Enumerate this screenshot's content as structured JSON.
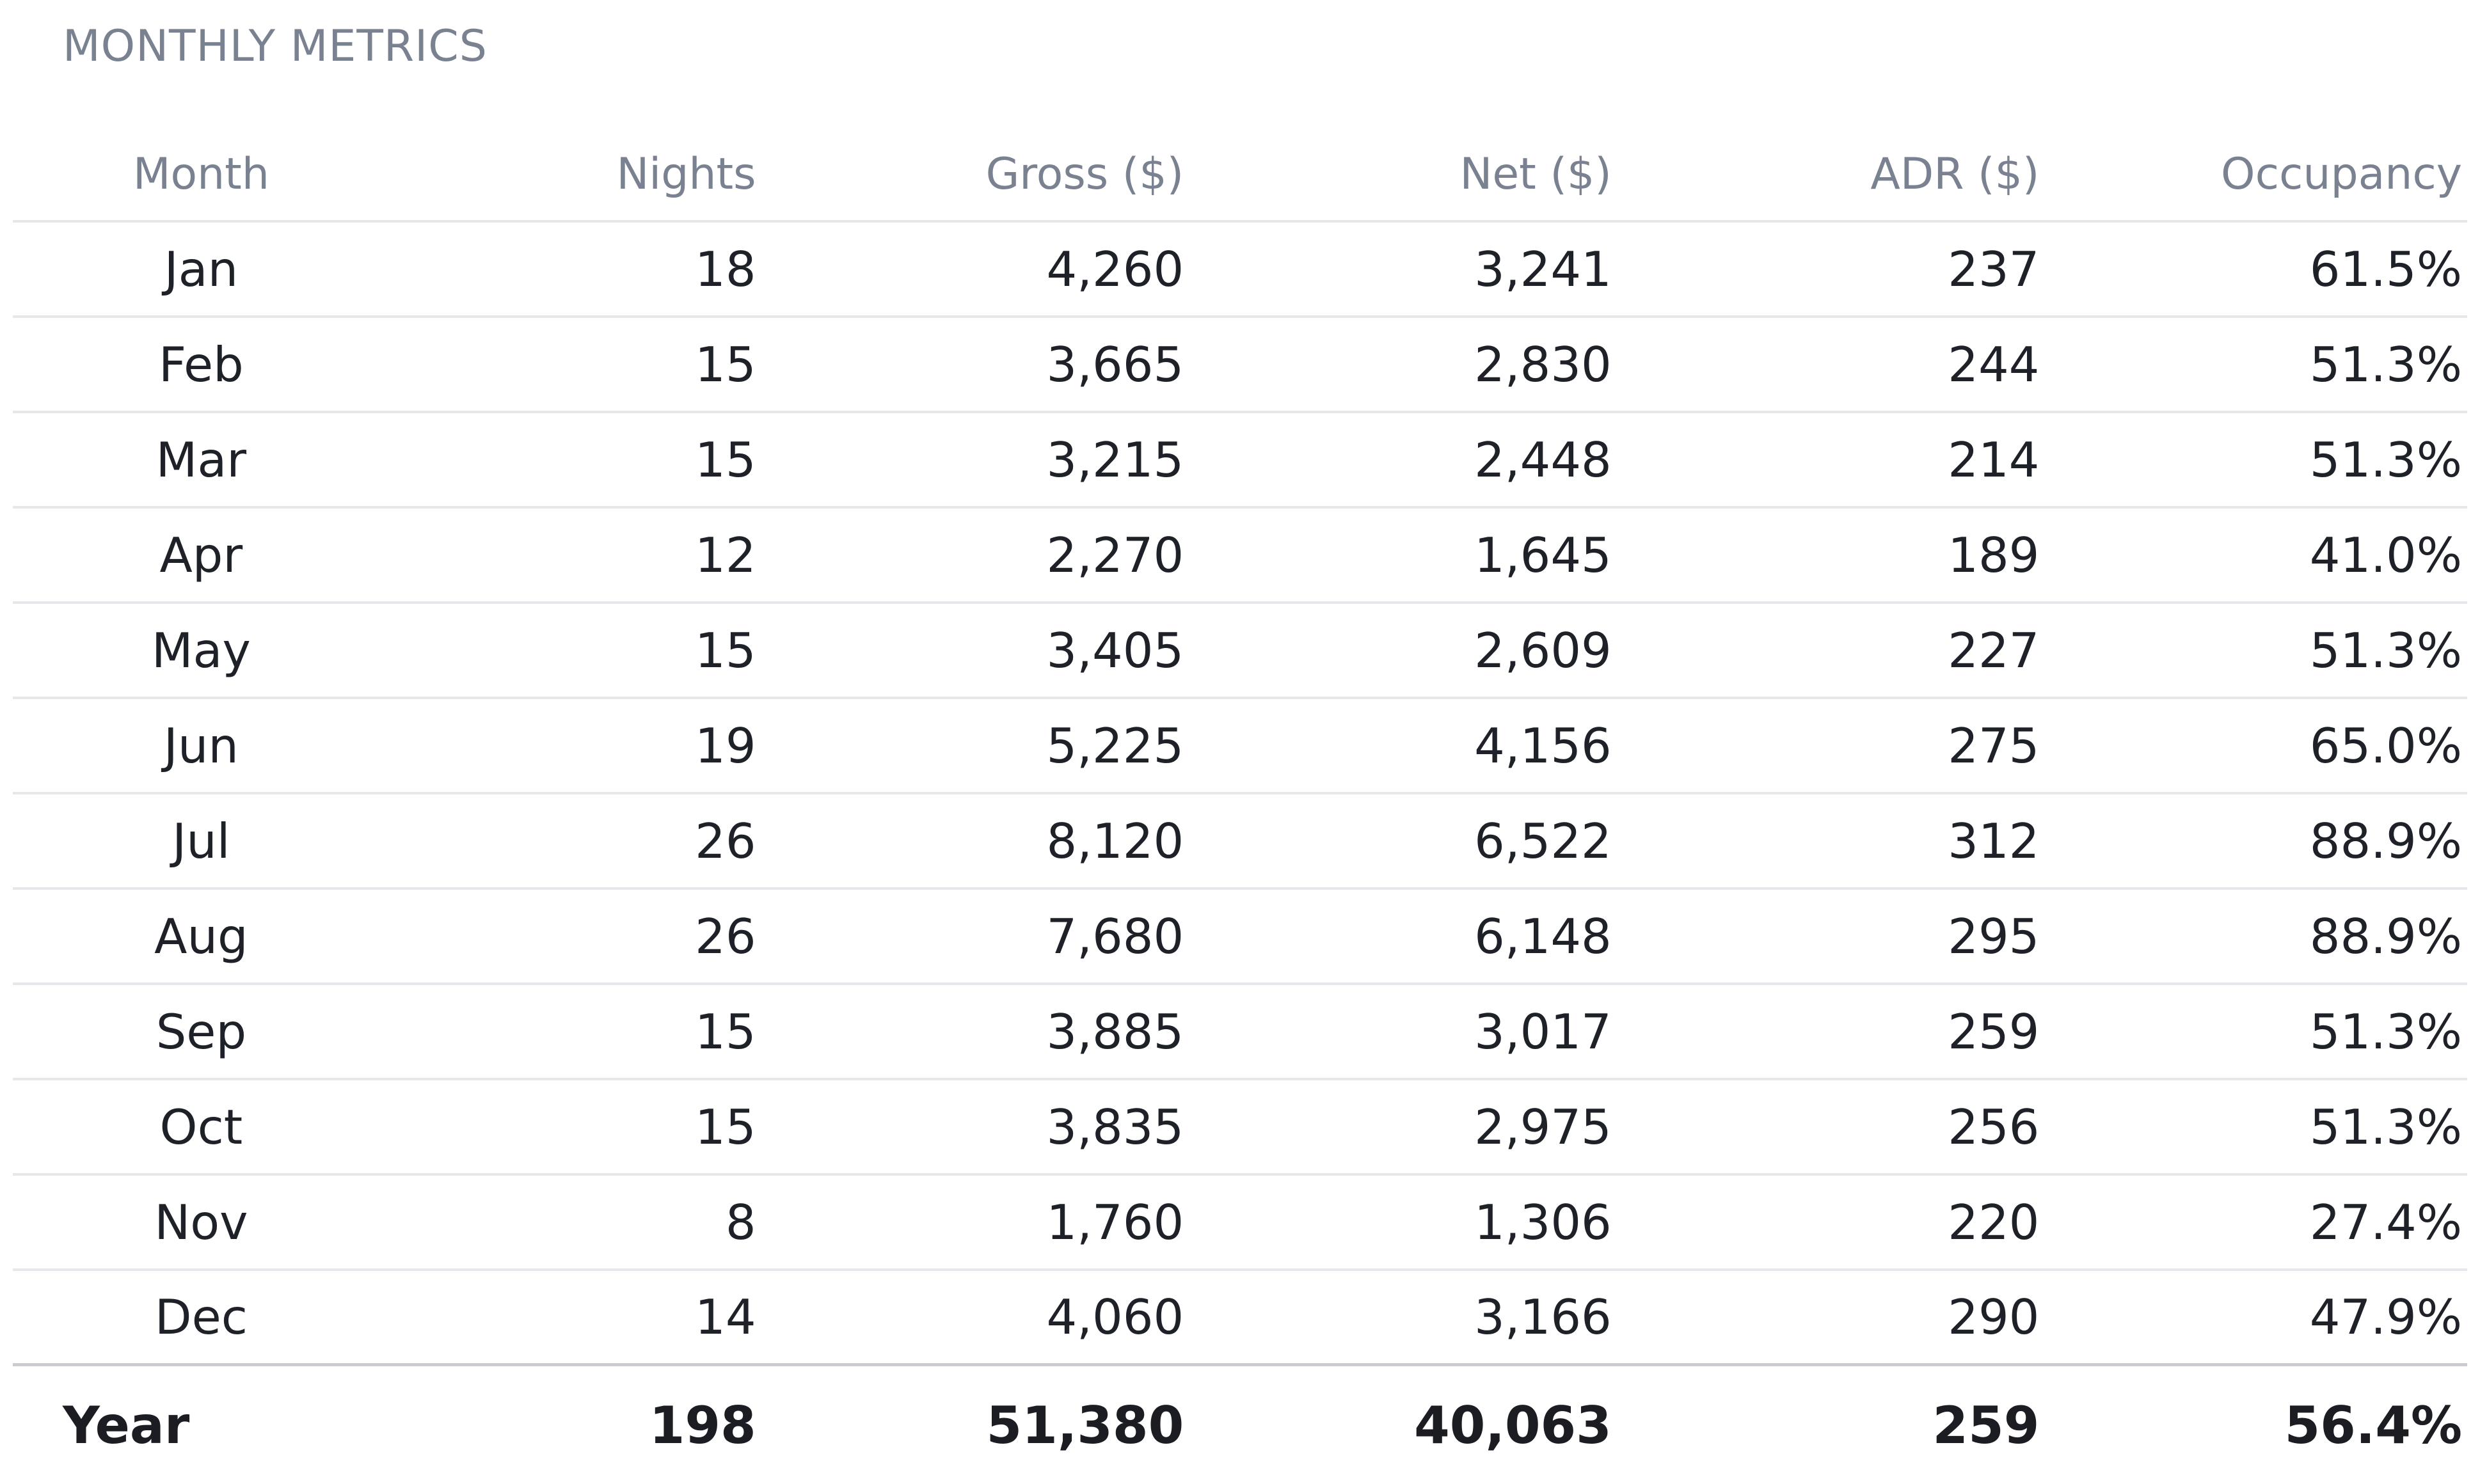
{
  "title": "MONTHLY METRICS",
  "columns": [
    "Month",
    "Nights",
    "Gross ($)",
    "Net ($)",
    "ADR ($)",
    "Occupancy"
  ],
  "rows": [
    {
      "month": "Jan",
      "nights": "18",
      "gross": "4,260",
      "net": "3,241",
      "adr": "237",
      "occupancy": "61.5%"
    },
    {
      "month": "Feb",
      "nights": "15",
      "gross": "3,665",
      "net": "2,830",
      "adr": "244",
      "occupancy": "51.3%"
    },
    {
      "month": "Mar",
      "nights": "15",
      "gross": "3,215",
      "net": "2,448",
      "adr": "214",
      "occupancy": "51.3%"
    },
    {
      "month": "Apr",
      "nights": "12",
      "gross": "2,270",
      "net": "1,645",
      "adr": "189",
      "occupancy": "41.0%"
    },
    {
      "month": "May",
      "nights": "15",
      "gross": "3,405",
      "net": "2,609",
      "adr": "227",
      "occupancy": "51.3%"
    },
    {
      "month": "Jun",
      "nights": "19",
      "gross": "5,225",
      "net": "4,156",
      "adr": "275",
      "occupancy": "65.0%"
    },
    {
      "month": "Jul",
      "nights": "26",
      "gross": "8,120",
      "net": "6,522",
      "adr": "312",
      "occupancy": "88.9%"
    },
    {
      "month": "Aug",
      "nights": "26",
      "gross": "7,680",
      "net": "6,148",
      "adr": "295",
      "occupancy": "88.9%"
    },
    {
      "month": "Sep",
      "nights": "15",
      "gross": "3,885",
      "net": "3,017",
      "adr": "259",
      "occupancy": "51.3%"
    },
    {
      "month": "Oct",
      "nights": "15",
      "gross": "3,835",
      "net": "2,975",
      "adr": "256",
      "occupancy": "51.3%"
    },
    {
      "month": "Nov",
      "nights": "8",
      "gross": "1,760",
      "net": "1,306",
      "adr": "220",
      "occupancy": "27.4%"
    },
    {
      "month": "Dec",
      "nights": "14",
      "gross": "4,060",
      "net": "3,166",
      "adr": "290",
      "occupancy": "47.9%"
    }
  ],
  "total": {
    "month": "Year",
    "nights": "198",
    "gross": "51,380",
    "net": "40,063",
    "adr": "259",
    "occupancy": "56.4%"
  }
}
